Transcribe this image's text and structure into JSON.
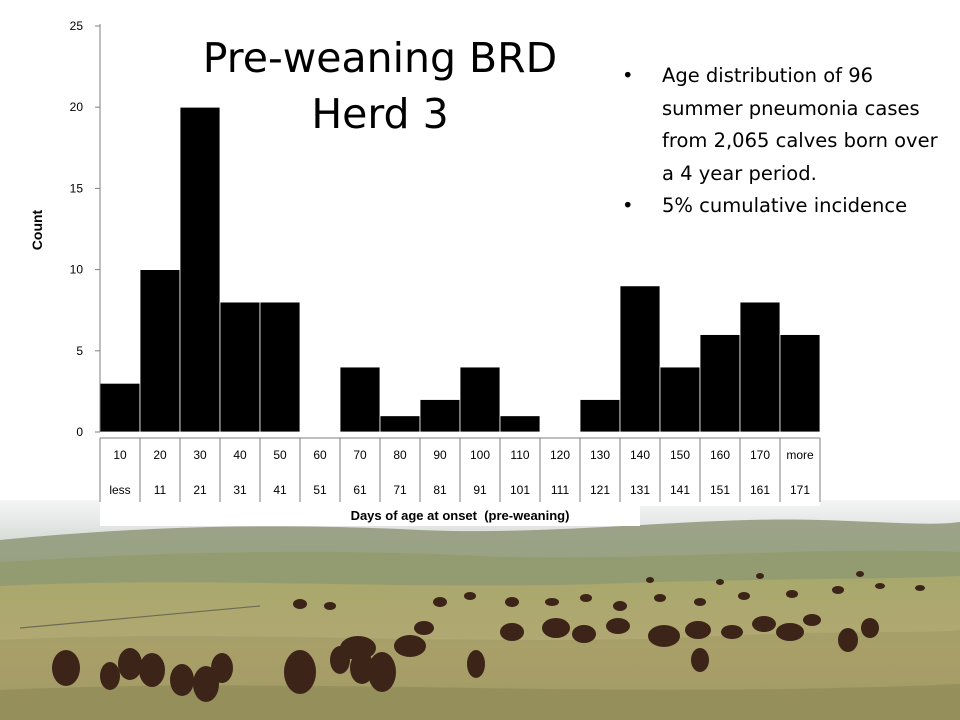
{
  "slide": {
    "title_lines": [
      "Pre-weaning BRD",
      "Herd 3"
    ],
    "bullets": [
      "Age distribution of 96 summer pneumonia cases from 2,065 calves born over a 4 year period.",
      "5% cumulative incidence"
    ],
    "background": "photo of grazing cattle on a prairie"
  },
  "chart_data": {
    "type": "bar",
    "categories": [
      "10",
      "20",
      "30",
      "40",
      "50",
      "60",
      "70",
      "80",
      "90",
      "100",
      "110",
      "120",
      "130",
      "140",
      "150",
      "160",
      "170",
      "more"
    ],
    "lower_bounds": [
      "less",
      "11",
      "21",
      "31",
      "41",
      "51",
      "61",
      "71",
      "81",
      "91",
      "101",
      "111",
      "121",
      "131",
      "141",
      "151",
      "161",
      "171"
    ],
    "values": [
      3,
      10,
      20,
      8,
      8,
      0,
      4,
      1,
      2,
      4,
      1,
      0,
      2,
      9,
      4,
      6,
      8,
      6
    ],
    "title": "",
    "xlabel": "Days of age at onset  (pre-weaning)",
    "ylabel": "Count",
    "ylim": [
      0,
      25
    ],
    "yticks": [
      0,
      5,
      10,
      15,
      20,
      25
    ],
    "grid": false,
    "bar_color": "#000000"
  }
}
